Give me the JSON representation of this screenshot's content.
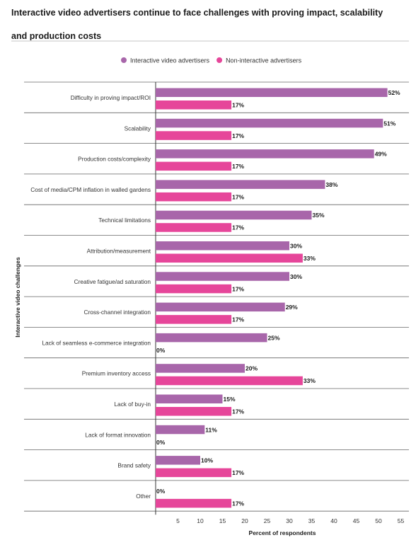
{
  "title": "Interactive video advertisers continue to face challenges with proving impact, scalability and production costs",
  "chart_data": {
    "type": "bar",
    "orientation": "horizontal",
    "title": "Interactive video advertisers continue to face challenges with proving impact, scalability and production costs",
    "xlabel": "Percent of respondents",
    "ylabel": "Interactive video challenges",
    "xlim": [
      0,
      57
    ],
    "xticks": [
      5,
      10,
      15,
      20,
      25,
      30,
      35,
      40,
      45,
      50,
      55
    ],
    "legend_position": "top",
    "grid": false,
    "categories": [
      "Difficulty in proving impact/ROI",
      "Scalability",
      "Production costs/complexity",
      "Cost of media/CPM inflation in walled gardens",
      "Technical limitations",
      "Attribution/measurement",
      "Creative fatigue/ad saturation",
      "Cross-channel integration",
      "Lack of seamless e-commerce integration",
      "Premium inventory access",
      "Lack of buy-in",
      "Lack of format innovation",
      "Brand safety",
      "Other"
    ],
    "series": [
      {
        "name": "Interactive video advertisers",
        "color": "#a866aa",
        "values": [
          52,
          51,
          49,
          38,
          35,
          30,
          30,
          29,
          25,
          20,
          15,
          11,
          10,
          0
        ],
        "labels": [
          "52%",
          "51%",
          "49%",
          "38%",
          "35%",
          "30%",
          "30%",
          "29%",
          "25%",
          "20%",
          "15%",
          "11%",
          "10%",
          "0%"
        ]
      },
      {
        "name": "Non-interactive advertisers",
        "color": "#e6469a",
        "values": [
          17,
          17,
          17,
          17,
          17,
          33,
          17,
          17,
          0,
          33,
          17,
          0,
          17,
          17
        ],
        "labels": [
          "17%",
          "17%",
          "17%",
          "17%",
          "17%",
          "33%",
          "17%",
          "17%",
          "0%",
          "33%",
          "17%",
          "0%",
          "17%",
          "17%"
        ]
      }
    ]
  }
}
